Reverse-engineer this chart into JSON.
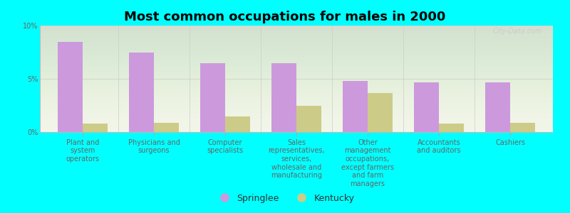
{
  "title": "Most common occupations for males in 2000",
  "background_color": "#00FFFF",
  "plot_bg_top": "#f5f8ee",
  "plot_bg_bottom": "#e8eedc",
  "categories": [
    "Plant and\nsystem\noperators",
    "Physicians and\nsurgeons",
    "Computer\nspecialists",
    "Sales\nrepresentatives,\nservices,\nwholesale and\nmanufacturing",
    "Other\nmanagement\noccupations,\nexcept farmers\nand farm\nmanagers",
    "Accountants\nand auditors",
    "Cashiers"
  ],
  "springlee_values": [
    8.5,
    7.5,
    6.5,
    6.5,
    4.8,
    4.7,
    4.7
  ],
  "kentucky_values": [
    0.8,
    0.9,
    1.5,
    2.5,
    3.7,
    0.8,
    0.9
  ],
  "springlee_color": "#cc99dd",
  "kentucky_color": "#cccc88",
  "legend_springlee": "Springlee",
  "legend_kentucky": "Kentucky",
  "ylim": [
    0,
    10
  ],
  "yticks": [
    0,
    5,
    10
  ],
  "ytick_labels": [
    "0%",
    "5%",
    "10%"
  ],
  "bar_width": 0.35,
  "title_fontsize": 13,
  "tick_fontsize": 7.0,
  "legend_fontsize": 9,
  "watermark": "City-Data.com"
}
